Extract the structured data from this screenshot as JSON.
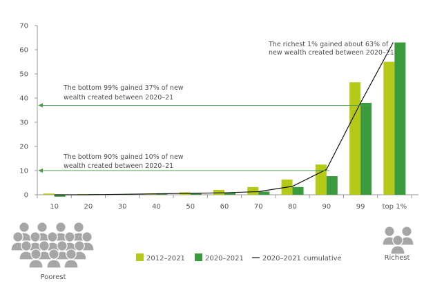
{
  "chart_data": {
    "type": "bar",
    "categories": [
      "10",
      "20",
      "30",
      "40",
      "50",
      "60",
      "70",
      "80",
      "90",
      "99",
      "top 1%"
    ],
    "series": [
      {
        "name": "2012–2021",
        "values": [
          0.5,
          0.3,
          0.3,
          0.4,
          1.0,
          2.0,
          3.2,
          6.3,
          12.5,
          46.5,
          55.0
        ],
        "color": "#b5c918"
      },
      {
        "name": "2020–2021",
        "values": [
          -0.8,
          0.3,
          0.3,
          0.4,
          0.5,
          0.8,
          1.3,
          3.2,
          7.7,
          38.0,
          63.0
        ],
        "color": "#3c9a3e"
      },
      {
        "name": "2020–2021 cumulative",
        "type": "line",
        "values": [
          0.0,
          0.0,
          0.2,
          0.4,
          0.6,
          0.8,
          1.3,
          3.5,
          10.5,
          38.0,
          63.0
        ],
        "color": "#111111"
      }
    ],
    "ylim": [
      0,
      70
    ],
    "yticks": [
      0,
      10,
      20,
      30,
      40,
      50,
      60,
      70
    ],
    "grid": false,
    "legend_position": "bottom",
    "annotations": [
      {
        "lines": [
          "The richest 1% gained about 63% of",
          "new wealth created between 2020–21"
        ]
      },
      {
        "lines": [
          "The bottom 99% gained 37% of new",
          "wealth created between 2020–21"
        ],
        "arrow_at_y": 37
      },
      {
        "lines": [
          "The bottom 90% gained 10% of new",
          "wealth created between 2020–21"
        ],
        "arrow_at_y": 10
      }
    ],
    "poorest_label": "Poorest",
    "richest_label": "Richest",
    "colors": {
      "axis": "#999999",
      "arrow": "#4c9a50",
      "icon": "#a6a6a6",
      "text": "#4d4d4d"
    }
  }
}
